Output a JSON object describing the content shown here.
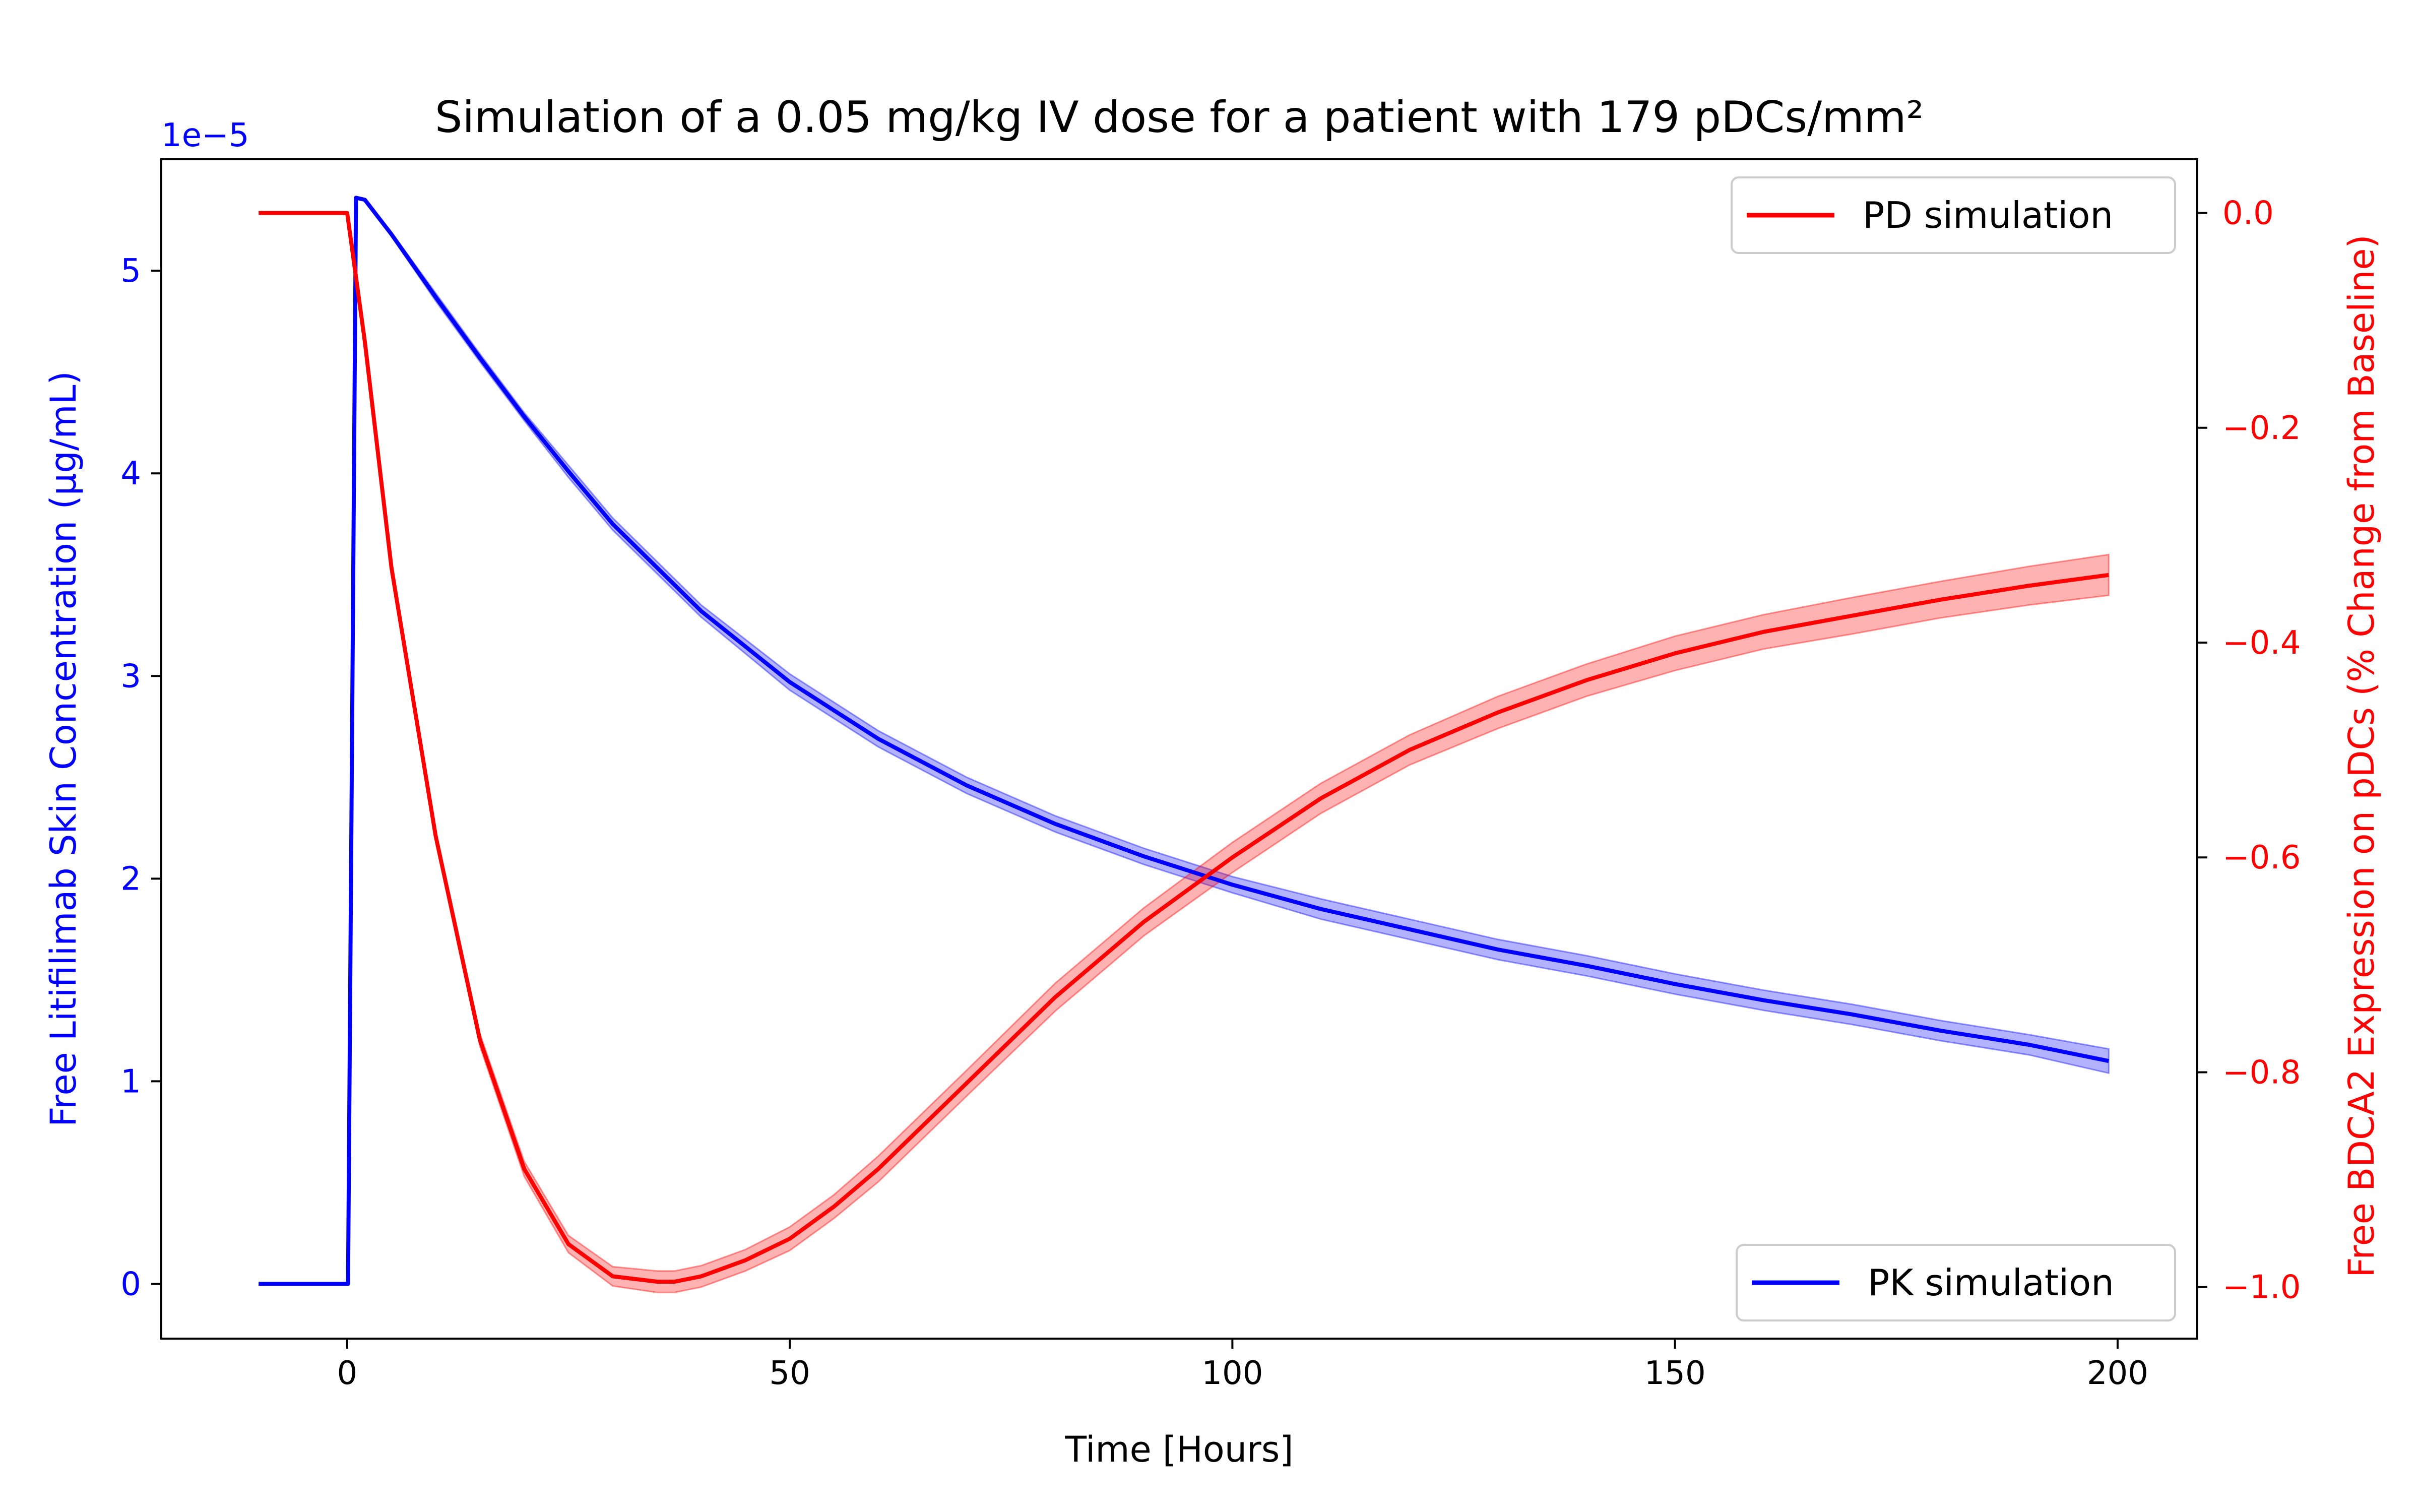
{
  "chart_data": {
    "type": "line",
    "title": "Simulation of a 0.05 mg/kg IV dose for a patient with 179 pDCs/mm²",
    "xlabel": "Time [Hours]",
    "xlim": [
      -21,
      209
    ],
    "x_ticks": [
      0,
      50,
      100,
      150,
      200
    ],
    "x_tick_labels": [
      "0",
      "50",
      "100",
      "150",
      "200"
    ],
    "left_axis": {
      "label": "Free Litifilimab Skin Concentration (µg/mL)",
      "color": "#0000ff",
      "multiplier_label": "1e−5",
      "ylim": [
        -0.27,
        5.55
      ],
      "ticks": [
        0,
        1,
        2,
        3,
        4,
        5
      ],
      "tick_labels": [
        "0",
        "1",
        "2",
        "3",
        "4",
        "5"
      ]
    },
    "right_axis": {
      "label": "Free BDCA2 Expression on pDCs (% Change from Baseline)",
      "color": "#ff0000",
      "ylim": [
        -1.048,
        0.05
      ],
      "ticks": [
        0.0,
        -0.2,
        -0.4,
        -0.6,
        -0.8,
        -1.0
      ],
      "tick_labels": [
        "0.0",
        "−0.2",
        "−0.4",
        "−0.6",
        "−0.8",
        "−1.0"
      ]
    },
    "series": [
      {
        "name": "PK simulation",
        "axis": "left",
        "color": "#0000ff",
        "band_color": "#0000ff",
        "x": [
          -10,
          0,
          0.1,
          1,
          2,
          5,
          10,
          15,
          20,
          25,
          30,
          40,
          50,
          60,
          70,
          80,
          90,
          100,
          110,
          120,
          130,
          140,
          150,
          160,
          170,
          180,
          190,
          199
        ],
        "y": [
          0,
          0,
          0,
          5.36,
          5.35,
          5.18,
          4.87,
          4.57,
          4.28,
          4.01,
          3.75,
          3.32,
          2.97,
          2.69,
          2.46,
          2.27,
          2.11,
          1.97,
          1.85,
          1.75,
          1.65,
          1.57,
          1.48,
          1.4,
          1.33,
          1.25,
          1.18,
          1.1
        ],
        "band_halfwidth": [
          0,
          0,
          0,
          0,
          0,
          0.01,
          0.02,
          0.02,
          0.02,
          0.03,
          0.03,
          0.03,
          0.04,
          0.04,
          0.04,
          0.04,
          0.04,
          0.04,
          0.05,
          0.05,
          0.05,
          0.05,
          0.05,
          0.05,
          0.05,
          0.05,
          0.05,
          0.06
        ]
      },
      {
        "name": "PD simulation",
        "axis": "right",
        "color": "#ff0000",
        "band_color": "#ff0000",
        "x": [
          -10,
          0,
          2,
          5,
          10,
          15,
          20,
          25,
          30,
          35,
          37,
          40,
          45,
          50,
          55,
          60,
          70,
          80,
          90,
          100,
          110,
          120,
          130,
          140,
          150,
          160,
          170,
          180,
          190,
          199
        ],
        "y": [
          0,
          0,
          -0.12,
          -0.33,
          -0.58,
          -0.77,
          -0.89,
          -0.96,
          -0.99,
          -0.995,
          -0.995,
          -0.99,
          -0.975,
          -0.955,
          -0.925,
          -0.89,
          -0.81,
          -0.73,
          -0.66,
          -0.6,
          -0.545,
          -0.5,
          -0.465,
          -0.435,
          -0.41,
          -0.39,
          -0.375,
          -0.36,
          -0.347,
          -0.337
        ],
        "band_halfwidth": [
          0,
          0,
          0.003,
          0.004,
          0.005,
          0.006,
          0.007,
          0.008,
          0.009,
          0.01,
          0.01,
          0.01,
          0.01,
          0.011,
          0.011,
          0.012,
          0.012,
          0.013,
          0.013,
          0.014,
          0.014,
          0.014,
          0.015,
          0.015,
          0.016,
          0.016,
          0.017,
          0.017,
          0.018,
          0.019
        ]
      }
    ],
    "legends": [
      {
        "series": "PD simulation",
        "placement": "upper right"
      },
      {
        "series": "PK simulation",
        "placement": "lower right"
      }
    ],
    "grid": false
  }
}
